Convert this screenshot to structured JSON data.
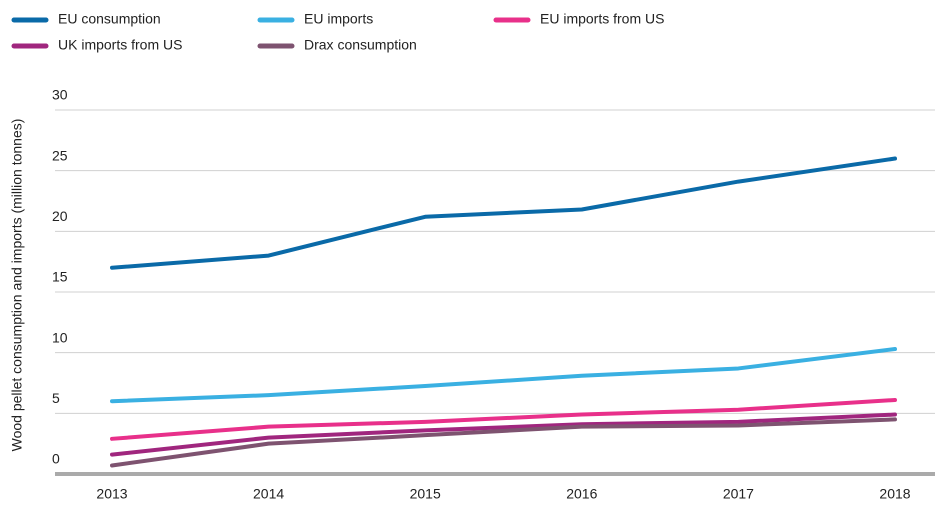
{
  "chart_data": {
    "type": "line",
    "y_label": "Wood pellet consumption and imports (million tonnes)",
    "categories": [
      "2013",
      "2014",
      "2015",
      "2016",
      "2017",
      "2018"
    ],
    "series": [
      {
        "name": "EU consumption",
        "color": "#0a6aa8",
        "values": [
          17,
          18,
          21.2,
          21.8,
          24.1,
          26
        ]
      },
      {
        "name": "EU imports",
        "color": "#3ab0e2",
        "values": [
          6,
          6.5,
          7.25,
          8.1,
          8.7,
          10.3
        ]
      },
      {
        "name": "EU imports from US",
        "color": "#e8308a",
        "values": [
          2.9,
          3.9,
          4.3,
          4.9,
          5.3,
          6.1
        ]
      },
      {
        "name": "UK imports from US",
        "color": "#a0267e",
        "values": [
          1.6,
          3,
          3.6,
          4.1,
          4.3,
          4.9
        ]
      },
      {
        "name": "Drax consumption",
        "color": "#7e5370",
        "values": [
          0.7,
          2.5,
          3.2,
          3.9,
          4,
          4.5
        ]
      }
    ],
    "ylim": [
      0,
      30
    ],
    "yticks": [
      0,
      5,
      10,
      15,
      20,
      25,
      30
    ],
    "grid": true
  }
}
